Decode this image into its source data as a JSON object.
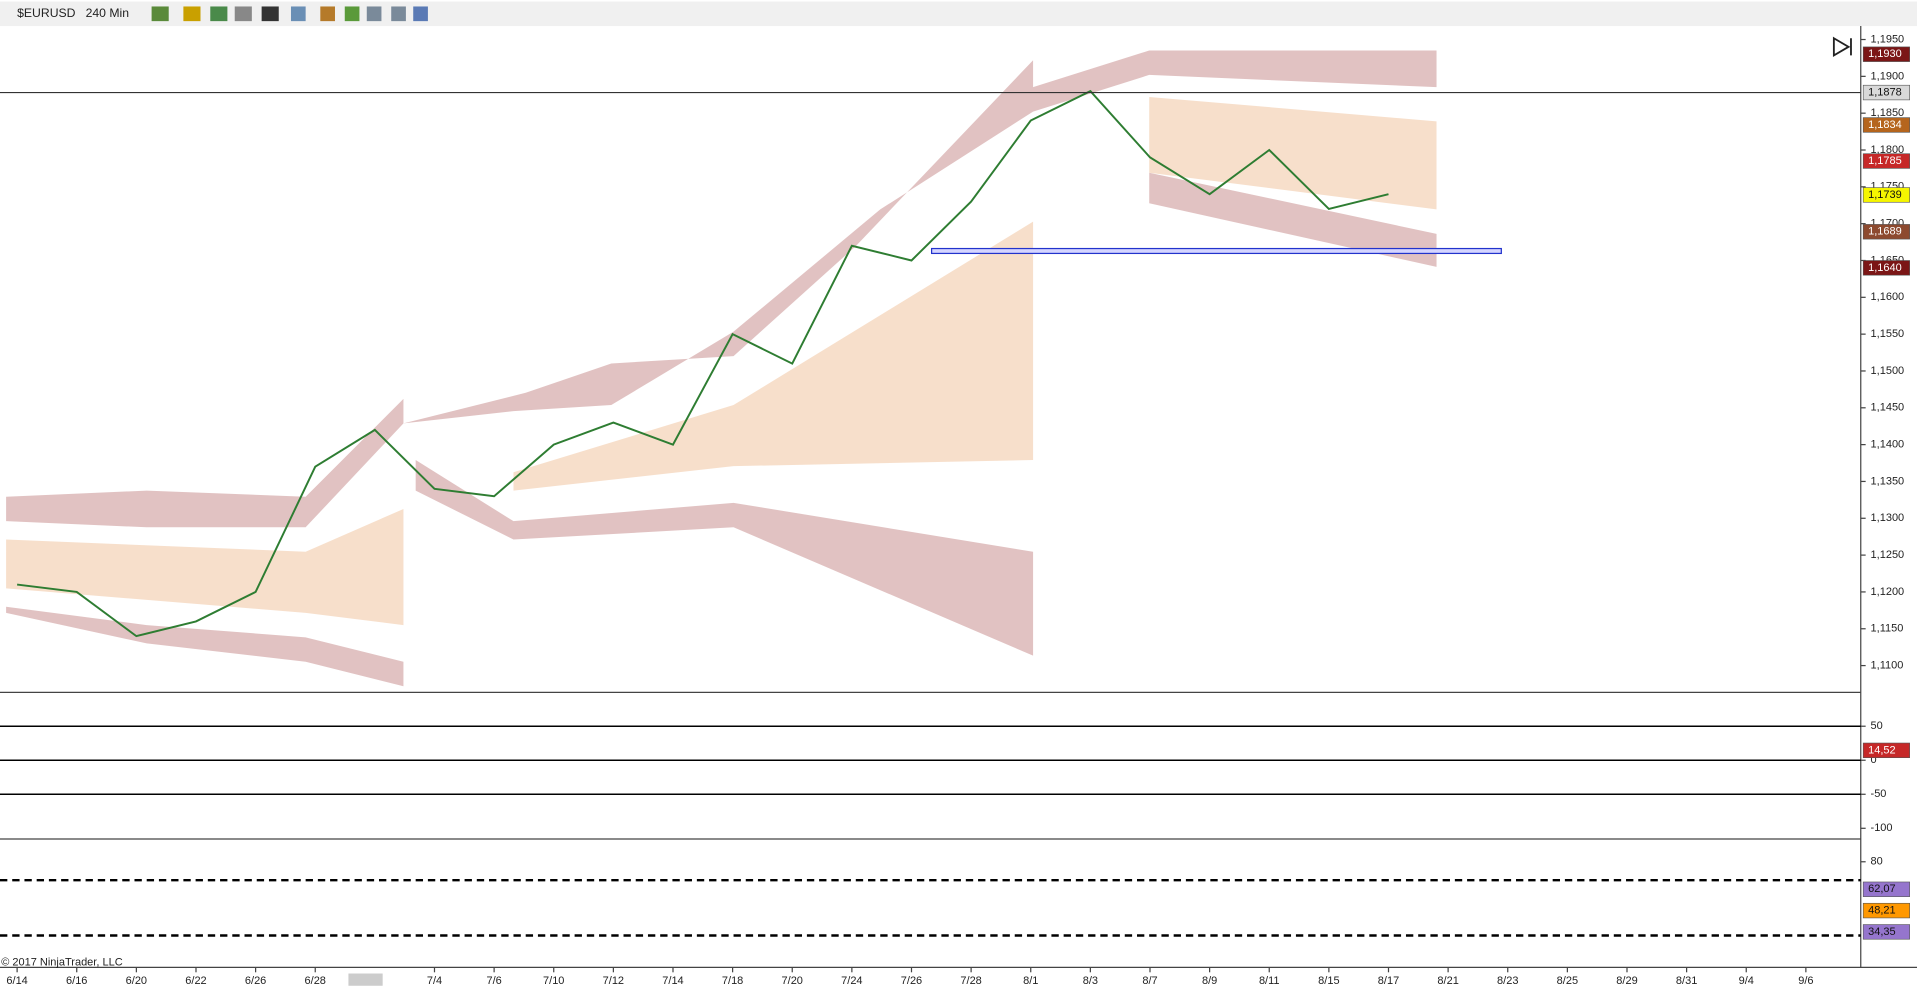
{
  "toolbar": {
    "symbol": "$EURUSD",
    "interval": "240 Min"
  },
  "copyright": "© 2017 NinjaTrader, LLC",
  "chart_data": {
    "type": "line",
    "categories": [
      "6/14",
      "6/16",
      "6/20",
      "6/22",
      "6/26",
      "6/28",
      null,
      "7/4",
      "7/6",
      "7/10",
      "7/12",
      "7/14",
      "7/18",
      "7/20",
      "7/24",
      "7/26",
      "7/28",
      "8/1",
      "8/3",
      "8/7",
      "8/9",
      "8/11",
      "8/15",
      "8/17",
      "8/21",
      "8/23",
      "8/25",
      "8/29",
      "8/31",
      "9/4",
      "9/6"
    ],
    "values": [
      1.121,
      1.12,
      1.114,
      1.116,
      1.12,
      1.137,
      1.142,
      1.134,
      1.133,
      1.14,
      1.143,
      1.14,
      1.155,
      1.151,
      1.167,
      1.165,
      1.173,
      1.184,
      1.188,
      1.179,
      1.174,
      1.18,
      1.172,
      1.174,
      null,
      null,
      null,
      null,
      null,
      null,
      null
    ],
    "color": "#2e7d32",
    "ylim": [
      1.1067,
      1.1965
    ],
    "yticks": [
      {
        "value": 1.11,
        "label": "1,1100"
      },
      {
        "value": 1.115,
        "label": "1,1150"
      },
      {
        "value": 1.12,
        "label": "1,1200"
      },
      {
        "value": 1.125,
        "label": "1,1250"
      },
      {
        "value": 1.13,
        "label": "1,1300"
      },
      {
        "value": 1.135,
        "label": "1,1350"
      },
      {
        "value": 1.14,
        "label": "1,1400"
      },
      {
        "value": 1.145,
        "label": "1,1450"
      },
      {
        "value": 1.15,
        "label": "1,1500"
      },
      {
        "value": 1.155,
        "label": "1,1550"
      },
      {
        "value": 1.16,
        "label": "1,1600"
      },
      {
        "value": 1.165,
        "label": "1,1650"
      },
      {
        "value": 1.17,
        "label": "1,1700"
      },
      {
        "value": 1.175,
        "label": "1,1750"
      },
      {
        "value": 1.18,
        "label": "1,1800"
      },
      {
        "value": 1.185,
        "label": "1,1850"
      },
      {
        "value": 1.19,
        "label": "1,1900"
      },
      {
        "value": 1.195,
        "label": "1,1950"
      }
    ],
    "price_tags": [
      {
        "value": 1.193,
        "label": "1,1930",
        "color": "#7b1616"
      },
      {
        "value": 1.1878,
        "label": "1,1878",
        "color": "#d9d9d9"
      },
      {
        "value": 1.1834,
        "label": "1,1834",
        "color": "#b5651d"
      },
      {
        "value": 1.1785,
        "label": "1,1785",
        "color": "#c62828"
      },
      {
        "value": 1.1739,
        "label": "1,1739",
        "color": "#f5f500"
      },
      {
        "value": 1.1689,
        "label": "1,1689",
        "color": "#8d4a2f"
      },
      {
        "value": 1.164,
        "label": "1,1640",
        "color": "#7b1616"
      }
    ]
  },
  "oscillator": {
    "ylim": [
      -114,
      98
    ],
    "yticks": [
      50,
      0,
      -50,
      -100
    ],
    "lines": [
      50,
      0,
      -50
    ],
    "price_tags": [
      {
        "value": 14.52,
        "label": "14,52",
        "color": "#c62828"
      }
    ]
  },
  "rsi": {
    "ylim": [
      16,
      94
    ],
    "yticks": [
      80
    ],
    "lines": [
      68,
      32
    ],
    "price_tags": [
      {
        "value": 62.07,
        "label": "62,07",
        "color": "#9575cd"
      },
      {
        "value": 48.21,
        "label": "48,21",
        "color": "#ff9800"
      },
      {
        "value": 34.35,
        "label": "34,35",
        "color": "#9575cd"
      }
    ]
  }
}
